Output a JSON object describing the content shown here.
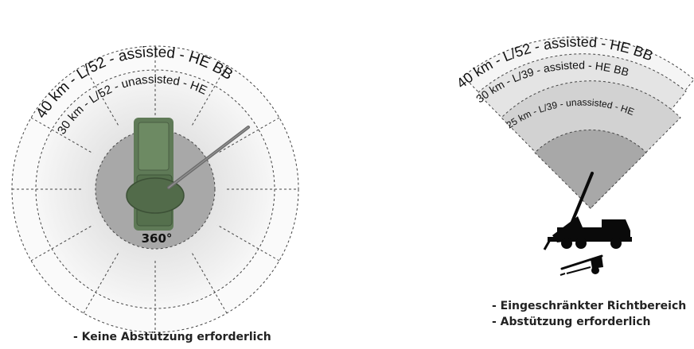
{
  "left_diagram": {
    "ring_outer_label": "40 km - L/52 - assisted - HE BB",
    "ring_inner_label": "30 km - L/52 - unassisted - HE",
    "traverse_label": "360°",
    "caption": "- Keine Abstützung erforderlich"
  },
  "right_diagram": {
    "ring_outer_label": "40 km - L/52 - assisted - HE BB",
    "ring_middle_label": "30 km - L/39 - assisted - HE BB",
    "ring_inner_label": "25 km - L/39 - unassisted - HE",
    "caption_lines": [
      "- Eingeschränkter Richtbereich",
      "- Abstützung erforderlich"
    ]
  },
  "colors": {
    "outer_ring": "#f2f2f2",
    "middle_ring": "#dedede",
    "inner_core": "#a8a8a8",
    "vehicle_green": "#5f7a57",
    "silhouette": "#0a0a0a"
  }
}
